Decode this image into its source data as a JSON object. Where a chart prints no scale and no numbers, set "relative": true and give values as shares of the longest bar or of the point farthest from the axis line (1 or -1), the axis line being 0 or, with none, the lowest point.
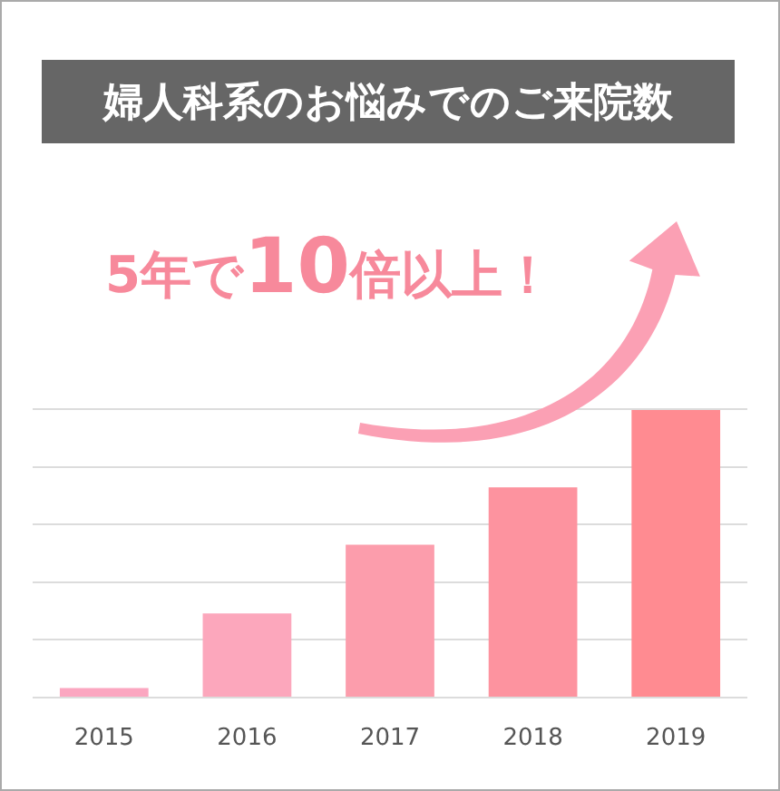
{
  "chart_data": {
    "type": "bar",
    "title": "婦人科系のお悩みでのご来院数",
    "annotations": [
      "5年で10倍以上！"
    ],
    "categories": [
      "2015",
      "2016",
      "2017",
      "2018",
      "2019"
    ],
    "values": [
      0.03,
      0.29,
      0.53,
      0.73,
      1
    ],
    "colors": [
      "#fba6c0",
      "#fca7bc",
      "#fc9dac",
      "#fd939f",
      "#ff8b91"
    ],
    "relative": true,
    "grid": "y"
  }
}
